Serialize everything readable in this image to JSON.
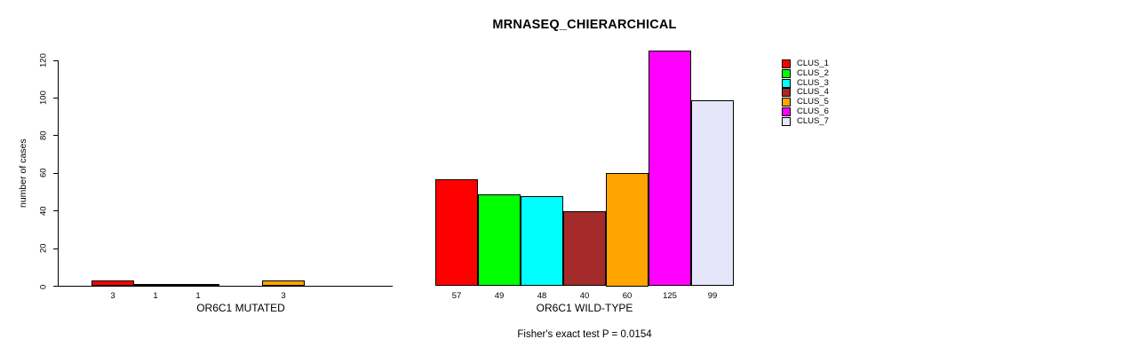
{
  "chart_data": {
    "type": "bar",
    "title": "MRNASEQ_CHIERARCHICAL",
    "ylabel": "number of cases",
    "ylim": [
      0,
      120
    ],
    "yticks": [
      0,
      20,
      40,
      60,
      80,
      100,
      120
    ],
    "grid": false,
    "legend_position": "top-right",
    "background": "#FFFFFF",
    "axis_color": "#000000",
    "clusters": [
      {
        "name": "CLUS_1",
        "color": "#FF0000"
      },
      {
        "name": "CLUS_2",
        "color": "#00FF00"
      },
      {
        "name": "CLUS_3",
        "color": "#00FFFF"
      },
      {
        "name": "CLUS_4",
        "color": "#A52A2A"
      },
      {
        "name": "CLUS_5",
        "color": "#FFA500"
      },
      {
        "name": "CLUS_6",
        "color": "#FF00FF"
      },
      {
        "name": "CLUS_7",
        "color": "#E6E6FA"
      }
    ],
    "groups": [
      {
        "label": "OR6C1 MUTATED",
        "values": [
          3,
          1,
          1,
          0,
          3,
          0,
          0
        ]
      },
      {
        "label": "OR6C1 WILD-TYPE",
        "values": [
          57,
          49,
          48,
          40,
          60,
          125,
          99
        ]
      }
    ],
    "annotation": "Fisher's exact test P = 0.0154"
  }
}
